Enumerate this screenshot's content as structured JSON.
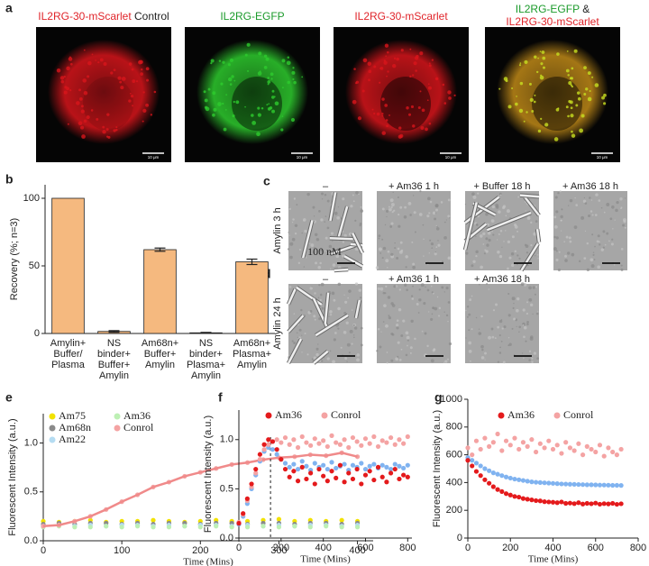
{
  "panel_a": {
    "letter": "a",
    "images": [
      {
        "label": [
          [
            {
              "text": "IL2RG-30-mScarlet",
              "color": "#e0242a"
            },
            {
              "text": "Control",
              "color": "#222222"
            }
          ]
        ],
        "tint": "#d8151b",
        "scale_bar": "10 μm"
      },
      {
        "label": [
          [
            {
              "text": "IL2RG-EGFP",
              "color": "#1a9a2a"
            }
          ]
        ],
        "tint": "#2ecc2e",
        "scale_bar": "10 μm"
      },
      {
        "label": [
          [
            {
              "text": "IL2RG-30-mScarlet",
              "color": "#e0242a"
            }
          ]
        ],
        "tint": "#d8151b",
        "scale_bar": "10 μm"
      },
      {
        "label": [
          [
            {
              "text": "IL2RG-EGFP",
              "color": "#1a9a2a"
            },
            {
              "text": "&",
              "color": "#222222"
            }
          ],
          [
            {
              "text": "IL2RG-30-mScarlet",
              "color": "#e0242a"
            }
          ]
        ],
        "tint": "#c08a18",
        "scale_bar": "10 μm"
      }
    ]
  },
  "panel_cd": {
    "scale_label": "100 nM",
    "rows": [
      {
        "letter": "c",
        "label": "Amylin 3 h",
        "columns": [
          "–",
          "+ Am36 1 h",
          "+ Buffer 18 h",
          "+ Am36 18 h"
        ],
        "fibrils": [
          true,
          false,
          true,
          false
        ]
      },
      {
        "letter": "d",
        "label": "Amylin 24 h",
        "columns": [
          "–",
          "+ Am36 1 h",
          "+ Am36 18 h"
        ],
        "fibrils": [
          true,
          false,
          false
        ]
      }
    ]
  },
  "chart_data": [
    {
      "type": "bar",
      "panel": "b",
      "ylabel": "Recovery (%; n=3)",
      "categories": [
        "Amylin+\nBuffer/\nPlasma",
        "NS\nbinder+\nBuffer+\nAmylin",
        "Am68n+\nBuffer+\nAmylin",
        "NS\nbinder+\nPlasma+\nAmylin",
        "Am68n+\nPlasma+\nAmylin"
      ],
      "values": [
        100,
        1.5,
        62,
        0.5,
        53
      ],
      "errors": [
        null,
        0.6,
        1.2,
        0.3,
        2
      ],
      "color": "#f5b97f",
      "ylim": [
        0,
        110
      ],
      "yticks": [
        0,
        50,
        100
      ]
    },
    {
      "type": "scatter",
      "panel": "e",
      "xlabel": "Time (Mins)",
      "ylabel": "Fluorescent Intensity (a.u.)",
      "x": [
        0,
        20,
        40,
        60,
        80,
        100,
        120,
        140,
        160,
        180,
        200,
        220,
        240,
        260,
        280,
        300,
        320,
        340,
        360,
        380,
        400
      ],
      "series": [
        {
          "name": "Am75",
          "color": "#f2e200",
          "values": [
            0.2,
            0.19,
            0.2,
            0.21,
            0.19,
            0.2,
            0.2,
            0.21,
            0.2,
            0.19,
            0.2,
            0.21,
            0.2,
            0.2,
            0.21,
            0.22,
            0.2,
            0.21,
            0.2,
            0.21,
            0.2
          ]
        },
        {
          "name": "Am68n",
          "color": "#8a8a8a",
          "values": [
            0.17,
            0.18,
            0.17,
            0.18,
            0.18,
            0.17,
            0.18,
            0.17,
            0.18,
            0.18,
            0.17,
            0.18,
            0.18,
            0.17,
            0.18,
            0.18,
            0.17,
            0.18,
            0.18,
            0.17,
            0.18
          ]
        },
        {
          "name": "Am22",
          "color": "#b5dcf2",
          "values": [
            0.15,
            0.16,
            0.15,
            0.16,
            0.15,
            0.16,
            0.16,
            0.15,
            0.16,
            0.15,
            0.16,
            0.16,
            0.15,
            0.16,
            0.15,
            0.16,
            0.15,
            0.16,
            0.16,
            0.15,
            0.16
          ]
        },
        {
          "name": "Am36",
          "color": "#bdf0b4",
          "values": [
            0.14,
            0.15,
            0.14,
            0.14,
            0.15,
            0.14,
            0.15,
            0.14,
            0.14,
            0.15,
            0.14,
            0.15,
            0.14,
            0.14,
            0.15,
            0.14,
            0.15,
            0.14,
            0.15,
            0.14,
            0.14
          ]
        },
        {
          "name": "Conrol",
          "color": "#f4a3a3",
          "fit": true,
          "values": [
            0.15,
            0.16,
            0.2,
            0.25,
            0.32,
            0.4,
            0.47,
            0.55,
            0.6,
            0.66,
            0.7,
            0.74,
            0.78,
            0.8,
            0.83,
            0.85,
            0.86,
            0.88,
            0.87,
            0.9,
            0.86
          ]
        }
      ],
      "xlim": [
        0,
        420
      ],
      "xticks": [
        0,
        100,
        200,
        300,
        400
      ],
      "ylim": [
        0,
        1.3
      ],
      "yticks": [
        {
          "value": 0,
          "label": "0.0"
        },
        {
          "value": 0.5,
          "label": "0.5"
        },
        {
          "value": 1,
          "label": "1.0"
        }
      ]
    },
    {
      "type": "scatter",
      "panel": "f",
      "xlabel": "Time (Mins)",
      "ylabel": "Fluorescent Intensity (a.u.)",
      "reference_x": 150,
      "x": [
        0,
        20,
        40,
        60,
        80,
        100,
        120,
        140,
        160,
        180,
        200,
        220,
        240,
        260,
        280,
        300,
        320,
        340,
        360,
        380,
        400,
        420,
        440,
        460,
        480,
        500,
        520,
        540,
        560,
        580,
        600,
        620,
        640,
        660,
        680,
        700,
        720,
        740,
        760,
        780,
        800
      ],
      "series": [
        {
          "color": "#80b3f0",
          "values": [
            0.14,
            0.22,
            0.35,
            0.5,
            0.64,
            0.78,
            0.88,
            0.92,
            0.9,
            0.85,
            0.8,
            0.76,
            0.72,
            0.75,
            0.7,
            0.78,
            0.73,
            0.69,
            0.76,
            0.72,
            0.74,
            0.7,
            0.77,
            0.71,
            0.73,
            0.75,
            0.69,
            0.74,
            0.72,
            0.76,
            0.7,
            0.73,
            0.75,
            0.71,
            0.74,
            0.72,
            0.7,
            0.75,
            0.73,
            0.71,
            0.74
          ]
        },
        {
          "name": "Conrol",
          "color": "#f4a3a3",
          "values": [
            0.16,
            0.24,
            0.38,
            0.52,
            0.66,
            0.8,
            0.9,
            0.95,
            0.98,
            1.0,
            0.97,
            1.02,
            0.95,
            1.0,
            0.92,
            1.03,
            0.97,
            0.94,
            1.01,
            0.96,
            0.99,
            0.93,
            1.04,
            0.97,
            0.95,
            1.0,
            0.92,
            1.02,
            0.98,
            0.94,
            1.01,
            0.96,
            1.03,
            0.93,
            0.99,
            0.97,
            1.02,
            0.95,
            1.0,
            0.96,
            1.03
          ]
        },
        {
          "name": "Am36",
          "color": "#e41a1c",
          "values": [
            0.15,
            0.25,
            0.4,
            0.55,
            0.7,
            0.85,
            0.95,
            1.0,
            0.98,
            0.9,
            0.8,
            0.7,
            0.62,
            0.68,
            0.58,
            0.72,
            0.6,
            0.66,
            0.55,
            0.7,
            0.63,
            0.58,
            0.68,
            0.61,
            0.74,
            0.57,
            0.66,
            0.6,
            0.7,
            0.55,
            0.64,
            0.68,
            0.59,
            0.72,
            0.62,
            0.57,
            0.66,
            0.7,
            0.6,
            0.64,
            0.62
          ]
        }
      ],
      "legend_order": [
        2,
        1
      ],
      "xlim": [
        0,
        820
      ],
      "xticks": [
        0,
        200,
        400,
        600,
        800
      ],
      "ylim": [
        0,
        1.3
      ],
      "yticks": [
        {
          "value": 0,
          "label": "0.0"
        },
        {
          "value": 0.5,
          "label": "0.5"
        },
        {
          "value": 1,
          "label": "1.0"
        }
      ]
    },
    {
      "type": "scatter",
      "panel": "g",
      "xlabel": "Time (Mins)",
      "ylabel": "Fluorescent Intensity (a.u.)",
      "x": [
        0,
        20,
        40,
        60,
        80,
        100,
        120,
        140,
        160,
        180,
        200,
        220,
        240,
        260,
        280,
        300,
        320,
        340,
        360,
        380,
        400,
        420,
        440,
        460,
        480,
        500,
        520,
        540,
        560,
        580,
        600,
        620,
        640,
        660,
        680,
        700,
        720
      ],
      "series": [
        {
          "name": "Conrol",
          "color": "#f4a3a3",
          "values": [
            650,
            600,
            700,
            640,
            720,
            660,
            690,
            750,
            630,
            700,
            670,
            720,
            640,
            690,
            660,
            710,
            620,
            680,
            650,
            700,
            640,
            670,
            610,
            690,
            650,
            630,
            680,
            600,
            660,
            640,
            620,
            670,
            590,
            650,
            620,
            600,
            640
          ]
        },
        {
          "color": "#80b3f0",
          "values": [
            580,
            560,
            540,
            520,
            500,
            485,
            470,
            460,
            450,
            440,
            432,
            425,
            420,
            415,
            410,
            405,
            402,
            400,
            398,
            396,
            394,
            392,
            390,
            389,
            388,
            387,
            386,
            385,
            384,
            384,
            383,
            382,
            382,
            381,
            380,
            380,
            379
          ]
        },
        {
          "name": "Am36",
          "color": "#e41a1c",
          "values": [
            560,
            520,
            480,
            450,
            420,
            395,
            370,
            350,
            335,
            320,
            310,
            300,
            295,
            285,
            280,
            275,
            270,
            268,
            262,
            260,
            258,
            255,
            260,
            250,
            252,
            248,
            255,
            245,
            250,
            247,
            252,
            244,
            248,
            246,
            250,
            243,
            247
          ]
        }
      ],
      "legend_order": [
        2,
        0
      ],
      "xlim": [
        0,
        800
      ],
      "xticks": [
        0,
        200,
        400,
        600,
        800
      ],
      "ylim": [
        0,
        1000
      ],
      "yticks": [
        0,
        200,
        400,
        600,
        800,
        1000
      ]
    }
  ]
}
